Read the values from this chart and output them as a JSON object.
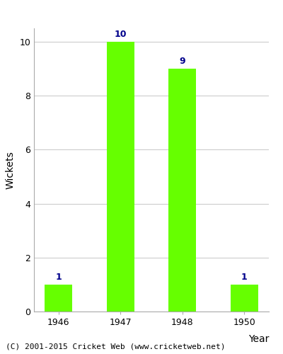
{
  "categories": [
    "1946",
    "1947",
    "1948",
    "1950"
  ],
  "values": [
    1,
    10,
    9,
    1
  ],
  "bar_color": "#66ff00",
  "bar_edge_color": "#66ff00",
  "title": "",
  "xlabel": "Year",
  "ylabel": "Wickets",
  "ylim": [
    0,
    10.5
  ],
  "yticks": [
    0,
    2,
    4,
    6,
    8,
    10
  ],
  "label_color": "#00008b",
  "label_fontsize": 9,
  "axis_fontsize": 10,
  "tick_fontsize": 9,
  "background_color": "#ffffff",
  "bar_width": 0.45,
  "footer_text": "(C) 2001-2015 Cricket Web (www.cricketweb.net)",
  "footer_fontsize": 8
}
